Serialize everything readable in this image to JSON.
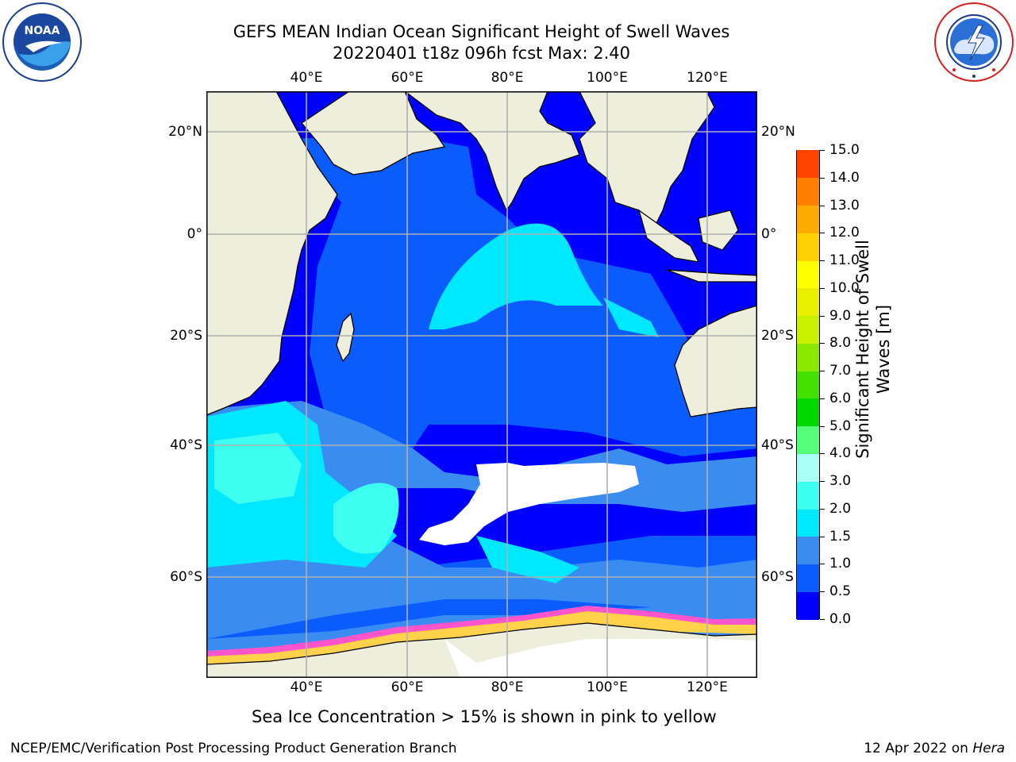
{
  "header": {
    "title_line1": "GEFS MEAN Indian Ocean Significant Height of Swell Waves",
    "title_line2": "20220401 t18z 096h fcst   Max: 2.40"
  },
  "logos": {
    "noaa": {
      "text": "NOAA",
      "ring_text": "NATIONAL OCEANIC AND ATMOSPHERIC ADMINISTRATION · U.S. DEPARTMENT OF COMMERCE"
    },
    "nws": {
      "ring_text": "NATIONAL WEATHER SERVICE"
    }
  },
  "map": {
    "lon_ticks": [
      "40°E",
      "60°E",
      "80°E",
      "100°E",
      "120°E"
    ],
    "lat_ticks": [
      "20°N",
      "0°",
      "20°S",
      "40°S",
      "60°S"
    ],
    "colors": {
      "land": "#eeeedd",
      "sea_ice": "#ffffff",
      "ice_pink": "#ff55cc",
      "ice_yellow": "#ffd24a",
      "grid": "#b0b0b0"
    }
  },
  "colorbar": {
    "label": "Significant Height of Swell Waves [m]",
    "ticks": [
      "0.0",
      "0.5",
      "1.0",
      "1.5",
      "2.0",
      "3.0",
      "4.0",
      "5.0",
      "6.0",
      "7.0",
      "8.0",
      "9.0",
      "10.0",
      "11.0",
      "12.0",
      "13.0",
      "14.0",
      "15.0"
    ],
    "colors": [
      "#0000ff",
      "#0a5cff",
      "#3a8cf0",
      "#00e8ff",
      "#3cfff0",
      "#a8fff6",
      "#55ff77",
      "#00d800",
      "#44e000",
      "#8ce800",
      "#c8f000",
      "#e8f000",
      "#ffff00",
      "#ffd000",
      "#ffaa00",
      "#ff8000",
      "#ff4400",
      "#ff0000"
    ]
  },
  "caption": "Sea Ice Concentration > 15% is shown in pink to yellow",
  "footer": {
    "left": "NCEP/EMC/Verification Post Processing Product Generation Branch",
    "right_date": "12 Apr 2022 on ",
    "right_host": "Hera"
  }
}
